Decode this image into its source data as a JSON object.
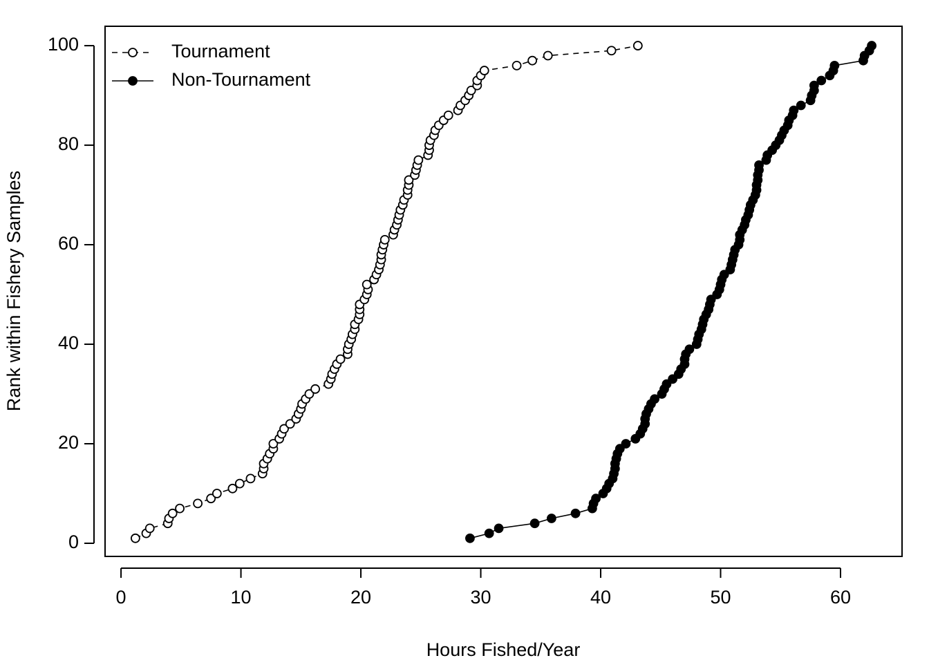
{
  "chart_data": {
    "type": "line",
    "xlabel": "Hours Fished/Year",
    "ylabel": "Rank within Fishery Samples",
    "xlim": [
      -1.33,
      65.13
    ],
    "ylim": [
      -2.64,
      103.9
    ],
    "xticks": [
      0,
      10,
      20,
      30,
      40,
      50,
      60
    ],
    "yticks": [
      0,
      20,
      40,
      60,
      80,
      100
    ],
    "legend": "top-left",
    "series": [
      {
        "name": "Tournament",
        "color": "#000000",
        "linestyle": "dashed",
        "marker": "open",
        "x": [
          1.2,
          2.1,
          2.4,
          3.9,
          4.0,
          4.3,
          4.9,
          6.4,
          7.5,
          8.0,
          9.3,
          9.9,
          10.8,
          11.8,
          11.9,
          11.9,
          12.2,
          12.4,
          12.7,
          12.7,
          13.2,
          13.4,
          13.6,
          14.1,
          14.6,
          14.8,
          15.0,
          15.1,
          15.4,
          15.7,
          16.2,
          17.3,
          17.5,
          17.6,
          17.8,
          18.0,
          18.3,
          18.9,
          18.9,
          19.0,
          19.2,
          19.3,
          19.5,
          19.5,
          19.8,
          19.9,
          19.9,
          19.9,
          20.3,
          20.5,
          20.6,
          20.5,
          21.1,
          21.3,
          21.5,
          21.6,
          21.7,
          21.7,
          21.8,
          21.9,
          22.0,
          22.7,
          22.8,
          23.0,
          23.1,
          23.2,
          23.3,
          23.5,
          23.6,
          23.9,
          23.9,
          24.0,
          24.0,
          24.5,
          24.6,
          24.7,
          24.8,
          25.6,
          25.7,
          25.7,
          25.8,
          26.1,
          26.2,
          26.5,
          26.9,
          27.3,
          28.1,
          28.3,
          28.7,
          29.0,
          29.2,
          29.7,
          29.7,
          30.0,
          30.3,
          33.0,
          34.3,
          35.6,
          40.9,
          43.1
        ],
        "values": [
          1,
          2,
          3,
          4,
          5,
          6,
          7,
          8,
          9,
          10,
          11,
          12,
          13,
          14,
          15,
          16,
          17,
          18,
          19,
          20,
          21,
          22,
          23,
          24,
          25,
          26,
          27,
          28,
          29,
          30,
          31,
          32,
          33,
          34,
          35,
          36,
          37,
          38,
          39,
          40,
          41,
          42,
          43,
          44,
          45,
          46,
          47,
          48,
          49,
          50,
          51,
          52,
          53,
          54,
          55,
          56,
          57,
          58,
          59,
          60,
          61,
          62,
          63,
          64,
          65,
          66,
          67,
          68,
          69,
          70,
          71,
          72,
          73,
          74,
          75,
          76,
          77,
          78,
          79,
          80,
          81,
          82,
          83,
          84,
          85,
          86,
          87,
          88,
          89,
          90,
          91,
          92,
          93,
          94,
          95,
          96,
          97,
          98,
          99,
          100
        ]
      },
      {
        "name": "Non-Tournament",
        "color": "#000000",
        "linestyle": "solid",
        "marker": "filled",
        "x": [
          29.1,
          30.7,
          31.5,
          34.5,
          35.9,
          37.9,
          39.3,
          39.4,
          39.6,
          40.2,
          40.5,
          40.7,
          41.0,
          41.1,
          41.2,
          41.2,
          41.3,
          41.4,
          41.6,
          42.1,
          42.9,
          43.3,
          43.5,
          43.7,
          43.7,
          43.8,
          44.0,
          44.2,
          44.5,
          45.1,
          45.3,
          45.5,
          46.0,
          46.5,
          46.7,
          47.0,
          47.0,
          47.1,
          47.4,
          48.0,
          48.1,
          48.2,
          48.4,
          48.5,
          48.6,
          48.8,
          49.0,
          49.1,
          49.2,
          49.7,
          49.9,
          50.0,
          50.1,
          50.3,
          50.8,
          50.9,
          51.0,
          51.1,
          51.2,
          51.5,
          51.6,
          51.6,
          51.8,
          52.0,
          52.1,
          52.3,
          52.4,
          52.5,
          52.7,
          52.9,
          53.0,
          53.0,
          53.1,
          53.1,
          53.2,
          53.2,
          53.8,
          53.9,
          54.3,
          54.6,
          54.9,
          55.1,
          55.3,
          55.6,
          55.7,
          56.0,
          56.1,
          56.7,
          57.5,
          57.6,
          57.8,
          57.8,
          58.4,
          59.1,
          59.4,
          59.5,
          61.9,
          62.0,
          62.4,
          62.6
        ],
        "values": [
          1,
          2,
          3,
          4,
          5,
          6,
          7,
          8,
          9,
          10,
          11,
          12,
          13,
          14,
          15,
          16,
          17,
          18,
          19,
          20,
          21,
          22,
          23,
          24,
          25,
          26,
          27,
          28,
          29,
          30,
          31,
          32,
          33,
          34,
          35,
          36,
          37,
          38,
          39,
          40,
          41,
          42,
          43,
          44,
          45,
          46,
          47,
          48,
          49,
          50,
          51,
          52,
          53,
          54,
          55,
          56,
          57,
          58,
          59,
          60,
          61,
          62,
          63,
          64,
          65,
          66,
          67,
          68,
          69,
          70,
          71,
          72,
          73,
          74,
          75,
          76,
          77,
          78,
          79,
          80,
          81,
          82,
          83,
          84,
          85,
          86,
          87,
          88,
          89,
          90,
          91,
          92,
          93,
          94,
          95,
          96,
          97,
          98,
          99,
          100
        ]
      }
    ]
  }
}
